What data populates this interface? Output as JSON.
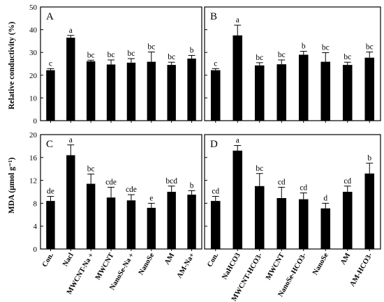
{
  "ylabels": {
    "top": "Relative conductivity (%)",
    "bottom": "MDA (μmol g⁻¹)"
  },
  "chart_data": [
    {
      "type": "bar",
      "panel": "A",
      "ylim": [
        0,
        50
      ],
      "yticks": [
        "0",
        "10",
        "20",
        "30",
        "40",
        "50"
      ],
      "categories": [
        "Con.",
        "Nacl",
        "MWCNT-Na +",
        "MWCNT",
        "NanoSe-Na +",
        "NanoSe",
        "AM",
        "AM-Na+"
      ],
      "values": [
        22.2,
        36.5,
        26.1,
        24.7,
        25.5,
        25.9,
        24.5,
        27.3
      ],
      "errors": [
        0.7,
        1.0,
        0.5,
        2.0,
        1.8,
        4.3,
        1.2,
        1.4
      ],
      "labels": [
        "c",
        "a",
        "bc",
        "bc",
        "bc",
        "bc",
        "bc",
        "b"
      ]
    },
    {
      "type": "bar",
      "panel": "B",
      "ylim": [
        0,
        50
      ],
      "yticks": [
        "0",
        "10",
        "20",
        "30",
        "40",
        "50"
      ],
      "categories": [
        "Con.",
        "NaHCO3",
        "MWCNT-HCO3-",
        "MWCNT",
        "NanoSe-HCO3-",
        "NanoSe",
        "AM",
        "AM-HCO3-"
      ],
      "values": [
        22.2,
        37.5,
        24.3,
        24.8,
        29.0,
        25.9,
        24.5,
        27.7
      ],
      "errors": [
        0.7,
        4.5,
        1.2,
        1.9,
        1.5,
        4.0,
        1.2,
        2.5
      ],
      "labels": [
        "c",
        "a",
        "bc",
        "bc",
        "b",
        "bc",
        "bc",
        "bc"
      ]
    },
    {
      "type": "bar",
      "panel": "C",
      "ylim": [
        0,
        20
      ],
      "yticks": [
        "0",
        "4",
        "8",
        "12",
        "16",
        "20"
      ],
      "categories": [
        "Con.",
        "Nacl",
        "MWCNT-Na +",
        "MWCNT",
        "NanoSe-Na +",
        "NanoSe",
        "AM",
        "AM-Na+"
      ],
      "values": [
        8.4,
        16.4,
        11.4,
        9.0,
        8.5,
        7.2,
        10.0,
        9.5
      ],
      "errors": [
        0.8,
        1.8,
        1.7,
        1.8,
        1.0,
        0.8,
        1.0,
        0.7
      ],
      "labels": [
        "de",
        "a",
        "bc",
        "cde",
        "cde",
        "e",
        "bcd",
        "b"
      ]
    },
    {
      "type": "bar",
      "panel": "D",
      "ylim": [
        0,
        20
      ],
      "yticks": [
        "0",
        "4",
        "8",
        "12",
        "16",
        "20"
      ],
      "categories": [
        "Con.",
        "NaHCO3",
        "MWCNT-HCO3-",
        "MWCNT",
        "NanoSe-HCO3-",
        "NanoSe",
        "AM",
        "AM-HCO3-"
      ],
      "values": [
        8.4,
        17.2,
        11.0,
        8.9,
        8.7,
        7.1,
        10.0,
        13.2
      ],
      "errors": [
        0.8,
        0.9,
        2.2,
        1.9,
        1.1,
        0.9,
        1.0,
        1.8
      ],
      "labels": [
        "cd",
        "a",
        "bc",
        "cd",
        "cd",
        "d",
        "cd",
        "b"
      ]
    }
  ]
}
